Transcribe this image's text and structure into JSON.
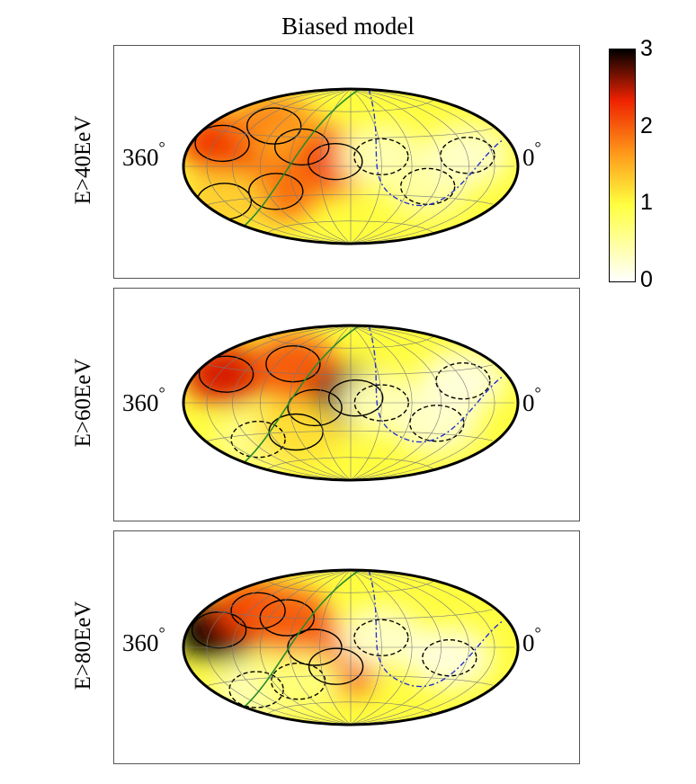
{
  "figure": {
    "title": "Biased model"
  },
  "colors": {
    "lowest": "#ffffff",
    "low": "#ffff40",
    "mid": "#ff9a1a",
    "high": "#ee2200",
    "highest": "#000000"
  },
  "colorbar": {
    "min": 0,
    "max": 3,
    "ticks": [
      "0",
      "1",
      "2",
      "3"
    ]
  },
  "panels": [
    {
      "id": "p40",
      "ylabel": "E>40EeV",
      "lon_left": "360",
      "lon_right": "0",
      "deg_symbol": "°"
    },
    {
      "id": "p60",
      "ylabel": "E>60EeV",
      "lon_left": "360",
      "lon_right": "0",
      "deg_symbol": "°"
    },
    {
      "id": "p80",
      "ylabel": "E>80EeV",
      "lon_left": "360",
      "lon_right": "0",
      "deg_symbol": "°"
    }
  ],
  "chart_data": [
    {
      "type": "heatmap",
      "projection": "aitoff",
      "title": "Biased model",
      "ylabel": "E>40EeV",
      "lon_range": [
        360,
        0
      ],
      "value_range": [
        0,
        3
      ],
      "features": [
        {
          "lon": 320,
          "lat": 20,
          "value": 2.2
        },
        {
          "lon": 275,
          "lat": 40,
          "value": 1.8
        },
        {
          "lon": 230,
          "lat": 20,
          "value": 1.6
        },
        {
          "lon": 195,
          "lat": 5,
          "value": 2.1
        },
        {
          "lon": 150,
          "lat": 10,
          "value": 0.4
        },
        {
          "lon": 100,
          "lat": -20,
          "value": 0.5
        },
        {
          "lon": 60,
          "lat": 10,
          "value": 0.3
        },
        {
          "lon": 260,
          "lat": -25,
          "value": 1.9
        },
        {
          "lon": 330,
          "lat": -30,
          "value": 1.3
        }
      ]
    },
    {
      "type": "heatmap",
      "projection": "aitoff",
      "title": "Biased model",
      "ylabel": "E>60EeV",
      "lon_range": [
        360,
        0
      ],
      "value_range": [
        0,
        3
      ],
      "features": [
        {
          "lon": 320,
          "lat": 25,
          "value": 2.4
        },
        {
          "lon": 250,
          "lat": 40,
          "value": 2.0
        },
        {
          "lon": 215,
          "lat": -5,
          "value": 2.0
        },
        {
          "lon": 175,
          "lat": 5,
          "value": 2.8
        },
        {
          "lon": 150,
          "lat": 0,
          "value": 0.4
        },
        {
          "lon": 90,
          "lat": -20,
          "value": 0.3
        },
        {
          "lon": 60,
          "lat": 20,
          "value": 0.2
        },
        {
          "lon": 290,
          "lat": -35,
          "value": 0.6
        },
        {
          "lon": 240,
          "lat": -30,
          "value": 1.2
        }
      ]
    },
    {
      "type": "heatmap",
      "projection": "aitoff",
      "title": "Biased model",
      "ylabel": "E>80EeV",
      "lon_range": [
        360,
        0
      ],
      "value_range": [
        0,
        3
      ],
      "features": [
        {
          "lon": 320,
          "lat": 15,
          "value": 3.0
        },
        {
          "lon": 290,
          "lat": 35,
          "value": 2.2
        },
        {
          "lon": 250,
          "lat": 30,
          "value": 2.0
        },
        {
          "lon": 215,
          "lat": 0,
          "value": 2.0
        },
        {
          "lon": 195,
          "lat": -20,
          "value": 2.0
        },
        {
          "lon": 150,
          "lat": 10,
          "value": 0.3
        },
        {
          "lon": 80,
          "lat": -10,
          "value": 0.2
        },
        {
          "lon": 300,
          "lat": -40,
          "value": 0.4
        },
        {
          "lon": 240,
          "lat": -35,
          "value": 0.7
        }
      ]
    }
  ]
}
